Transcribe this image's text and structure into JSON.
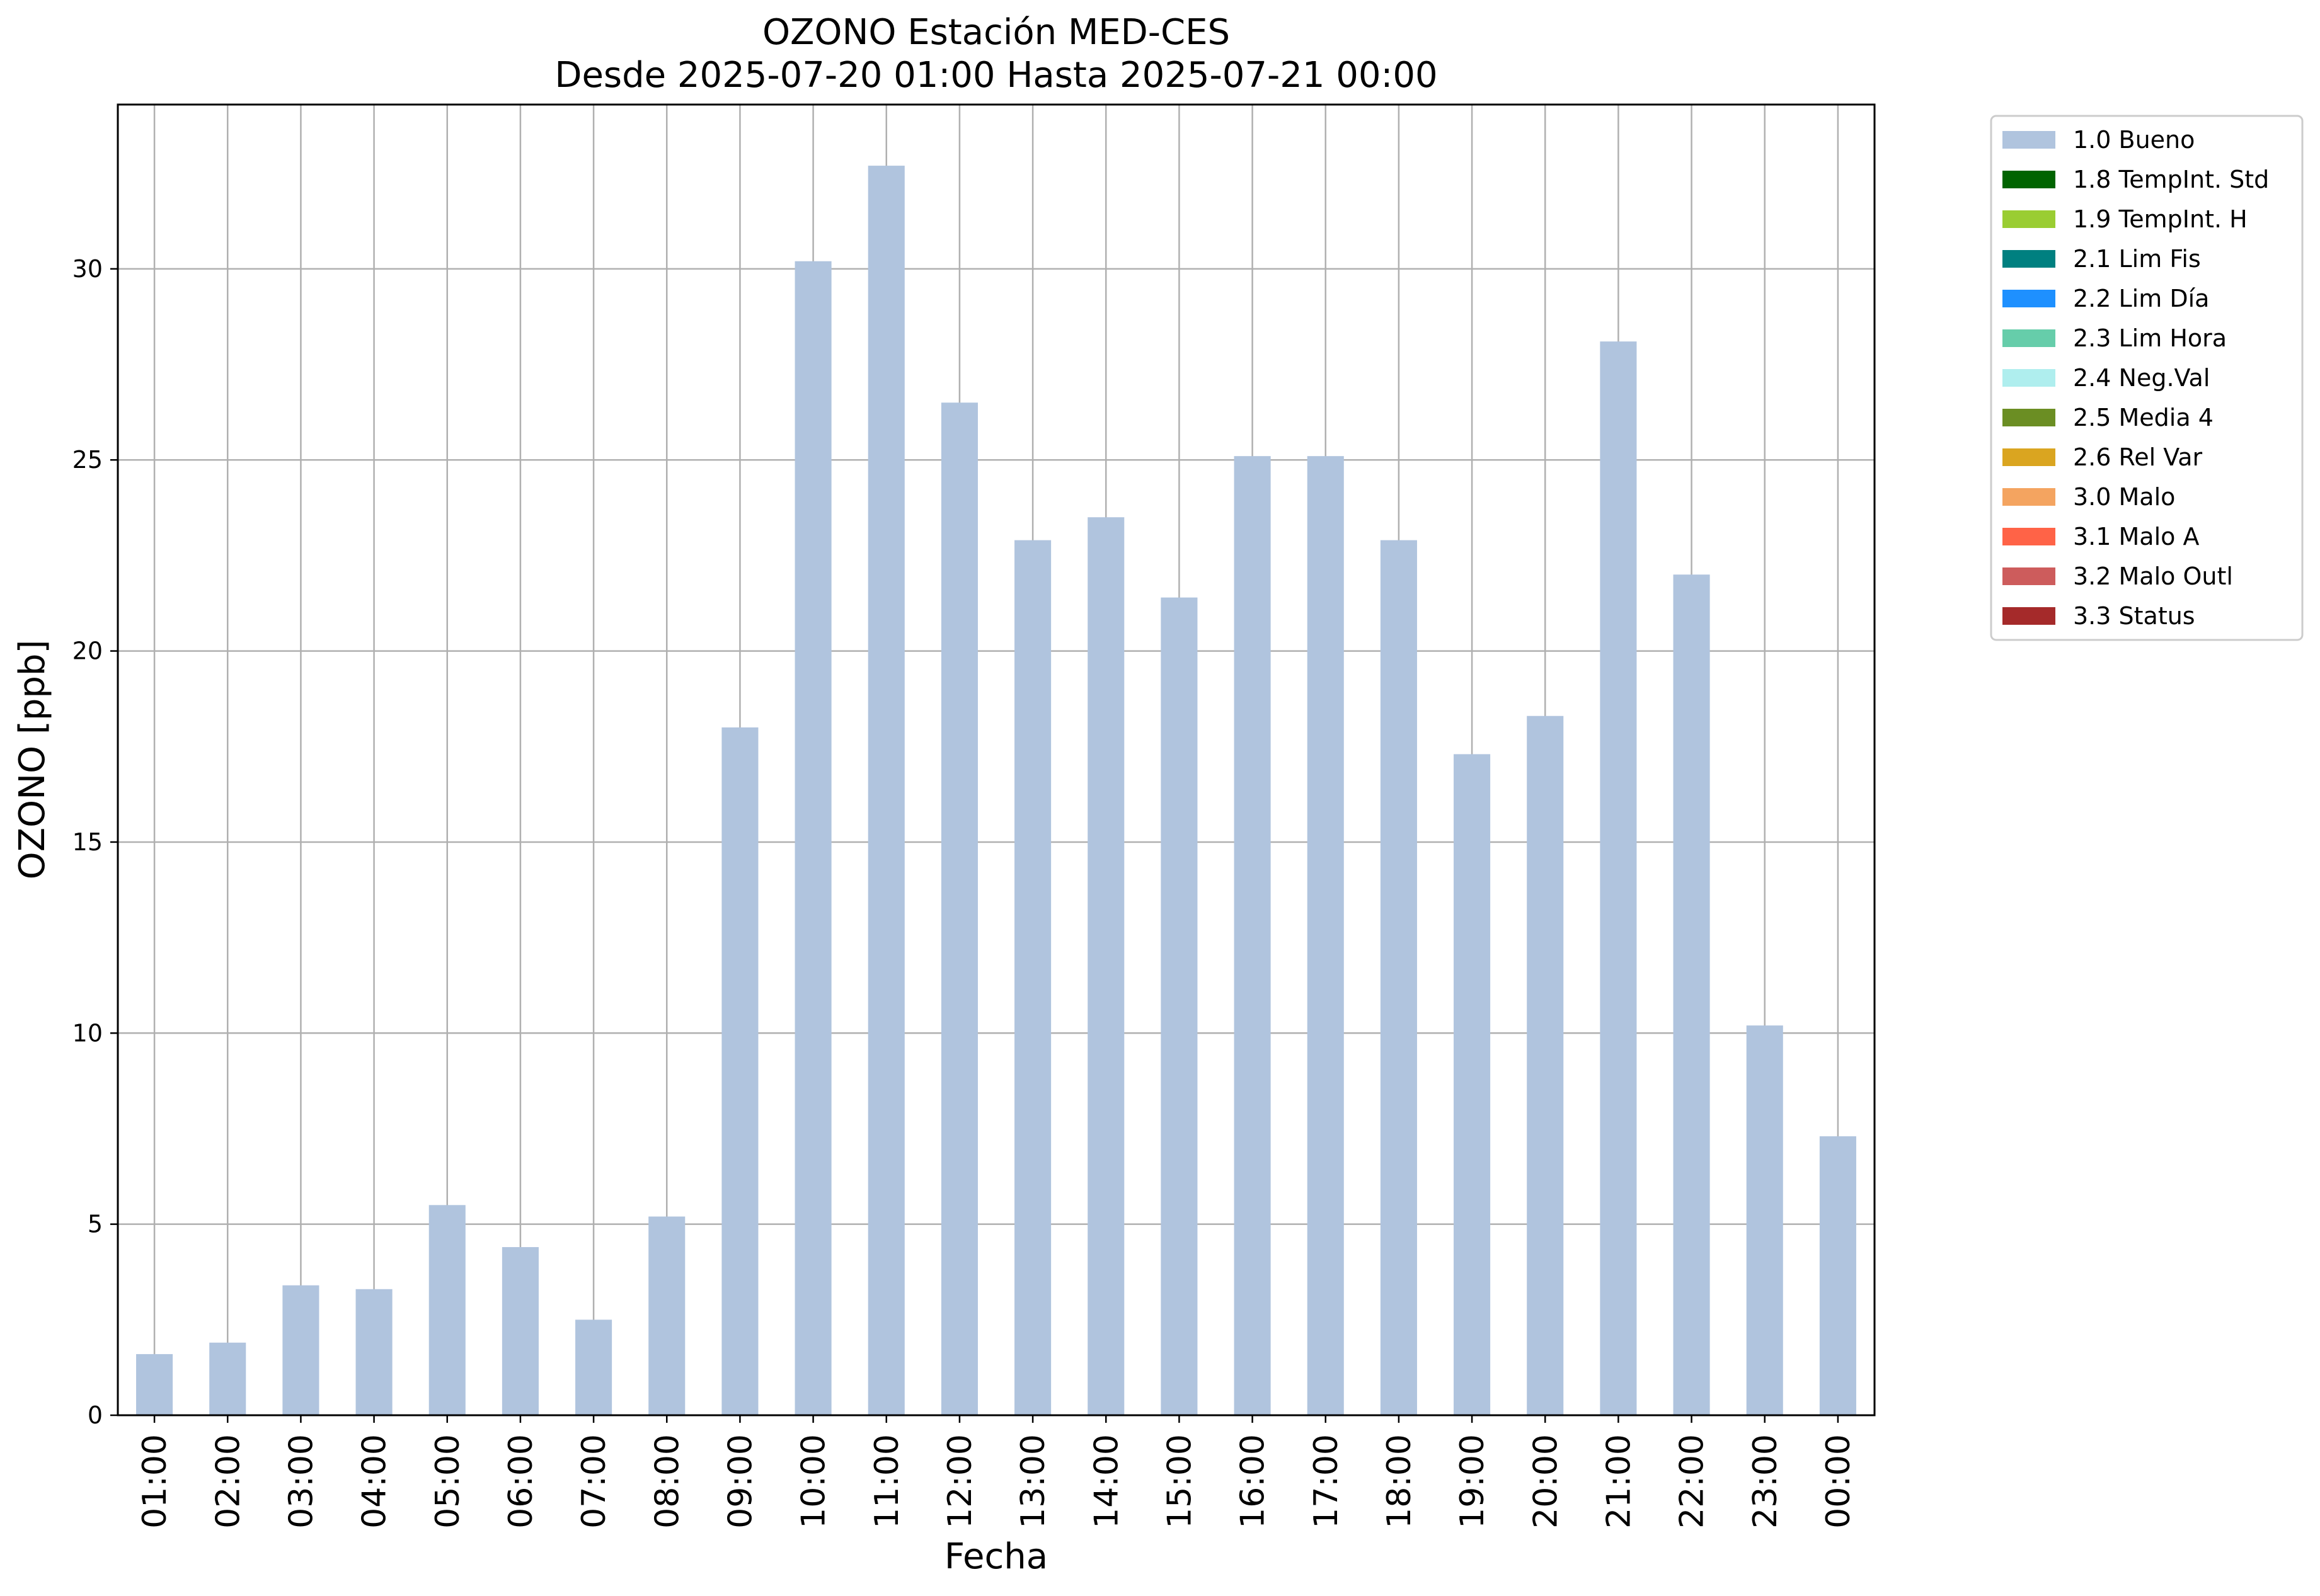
{
  "chart_data": {
    "type": "bar",
    "title": "OZONO Estación MED-CES",
    "subtitle": "Desde 2025-07-20 01:00 Hasta 2025-07-21 00:00",
    "xlabel": "Fecha",
    "ylabel": "OZONO [ppb]",
    "ylim": [
      0,
      34.3
    ],
    "yticks": [
      0,
      5,
      10,
      15,
      20,
      25,
      30
    ],
    "grid": true,
    "legend_position": "outside-top-right",
    "categories": [
      "01:00",
      "02:00",
      "03:00",
      "04:00",
      "05:00",
      "06:00",
      "07:00",
      "08:00",
      "09:00",
      "10:00",
      "11:00",
      "12:00",
      "13:00",
      "14:00",
      "15:00",
      "16:00",
      "17:00",
      "18:00",
      "19:00",
      "20:00",
      "21:00",
      "22:00",
      "23:00",
      "00:00"
    ],
    "series": [
      {
        "name": "1.0 Bueno",
        "color": "#b0c4de",
        "values": [
          1.6,
          1.9,
          3.4,
          3.3,
          5.5,
          4.4,
          2.5,
          5.2,
          18.0,
          30.2,
          32.7,
          26.5,
          22.9,
          23.5,
          21.4,
          25.1,
          25.1,
          22.9,
          17.3,
          18.3,
          28.1,
          22.0,
          10.2,
          7.3
        ]
      }
    ],
    "legend": [
      {
        "label": "1.0 Bueno",
        "color": "#b0c4de"
      },
      {
        "label": "1.8 TempInt. Std",
        "color": "#006400"
      },
      {
        "label": "1.9 TempInt. H",
        "color": "#9acd32"
      },
      {
        "label": "2.1 Lim Fis",
        "color": "#008080"
      },
      {
        "label": "2.2 Lim Día",
        "color": "#1e90ff"
      },
      {
        "label": "2.3 Lim Hora",
        "color": "#66cdaa"
      },
      {
        "label": "2.4 Neg.Val",
        "color": "#afeeee"
      },
      {
        "label": "2.5 Media 4",
        "color": "#6b8e23"
      },
      {
        "label": "2.6 Rel Var",
        "color": "#daa520"
      },
      {
        "label": "3.0 Malo",
        "color": "#f4a460"
      },
      {
        "label": "3.1 Malo A",
        "color": "#ff6347"
      },
      {
        "label": "3.2 Malo Outl",
        "color": "#cd5c5c"
      },
      {
        "label": "3.3 Status",
        "color": "#a52a2a"
      }
    ]
  }
}
